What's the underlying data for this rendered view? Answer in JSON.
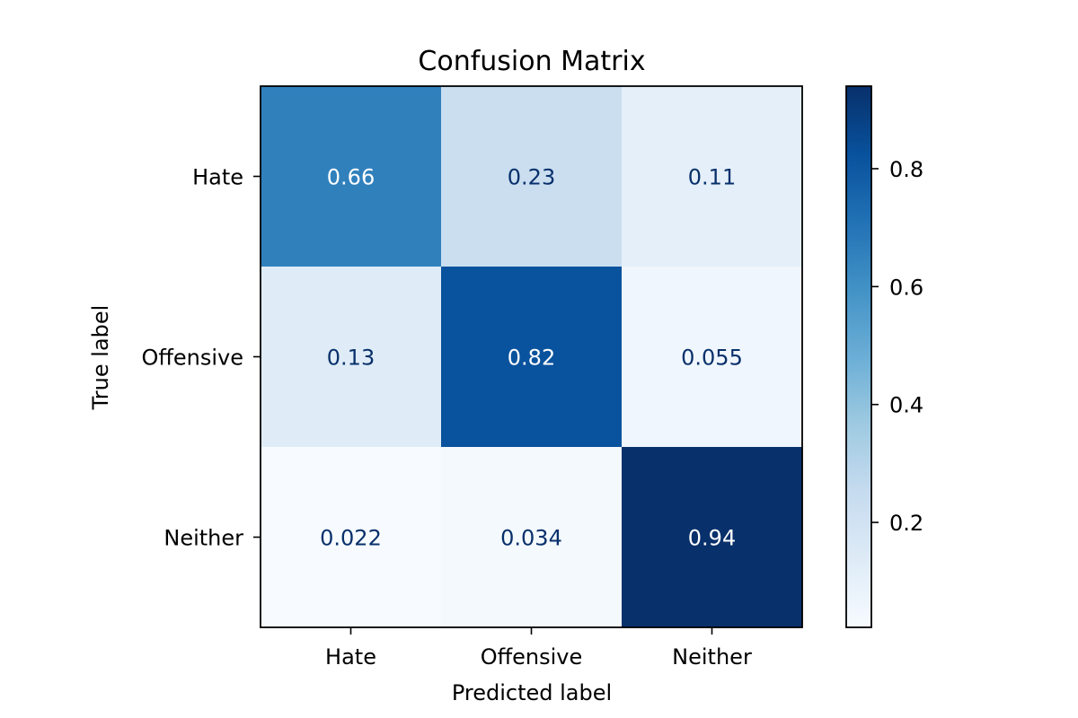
{
  "chart_data": {
    "type": "heatmap",
    "title": "Confusion Matrix",
    "xlabel": "Predicted label",
    "ylabel": "True label",
    "x_categories": [
      "Hate",
      "Offensive",
      "Neither"
    ],
    "y_categories": [
      "Hate",
      "Offensive",
      "Neither"
    ],
    "values": [
      [
        0.66,
        0.23,
        0.11
      ],
      [
        0.13,
        0.82,
        0.055
      ],
      [
        0.022,
        0.034,
        0.94
      ]
    ],
    "value_labels": [
      [
        "0.66",
        "0.23",
        "0.11"
      ],
      [
        "0.13",
        "0.82",
        "0.055"
      ],
      [
        "0.022",
        "0.034",
        "0.94"
      ]
    ],
    "colormap": "Blues",
    "colorbar": {
      "range": [
        0.022,
        0.94
      ],
      "ticks": [
        0.2,
        0.4,
        0.6,
        0.8
      ],
      "tick_labels": [
        "0.2",
        "0.4",
        "0.6",
        "0.8"
      ]
    },
    "text_colors": {
      "light": "#ffffff",
      "dark": "#08306b"
    }
  }
}
